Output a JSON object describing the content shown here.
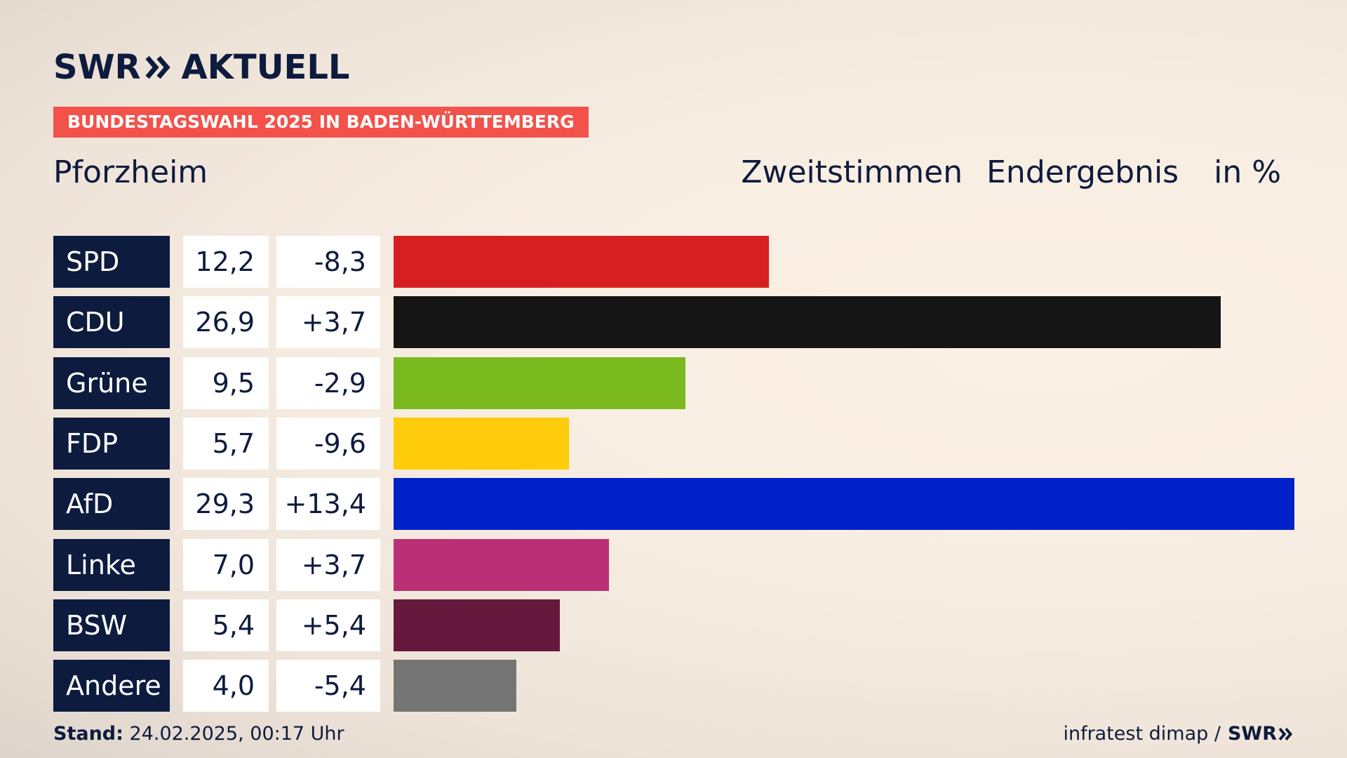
{
  "brand": {
    "left": "SWR",
    "right": "AKTUELL"
  },
  "kicker": "BUNDESTAGSWAHL 2025 IN BADEN-WÜRTTEMBERG",
  "region": "Pforzheim",
  "header": {
    "vote_type": "Zweitstimmen",
    "result_type": "Endergebnis",
    "unit": "in %"
  },
  "chart_data": {
    "type": "bar",
    "orientation": "horizontal",
    "categories": [
      "SPD",
      "CDU",
      "Grüne",
      "FDP",
      "AfD",
      "Linke",
      "BSW",
      "Andere"
    ],
    "values": [
      12.2,
      26.9,
      9.5,
      5.7,
      29.3,
      7.0,
      5.4,
      4.0
    ],
    "value_labels": [
      "12,2",
      "26,9",
      "9,5",
      "5,7",
      "29,3",
      "7,0",
      "5,4",
      "4,0"
    ],
    "changes": [
      -8.3,
      3.7,
      -2.9,
      -9.6,
      13.4,
      3.7,
      5.4,
      -5.4
    ],
    "change_labels": [
      "-8,3",
      "+3,7",
      "-2,9",
      "-9,6",
      "+13,4",
      "+3,7",
      "+5,4",
      "-5,4"
    ],
    "colors": [
      "#d71f22",
      "#151515",
      "#7aba1f",
      "#fecc0a",
      "#0021c7",
      "#bb3075",
      "#66183d",
      "#747474"
    ],
    "xlim": [
      0,
      29.3
    ],
    "grid": false,
    "legend": "none"
  },
  "footer": {
    "stand_label": "Stand:",
    "stand_value": "24.02.2025, 00:17 Uhr",
    "source": "infratest dimap /",
    "source_brand": "SWR"
  }
}
